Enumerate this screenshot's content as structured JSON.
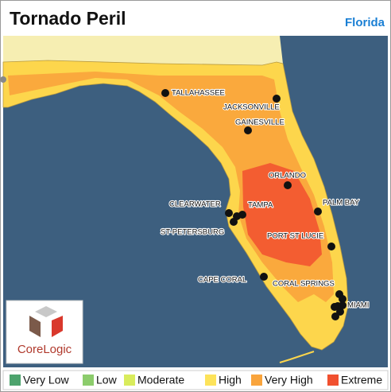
{
  "header": {
    "title": "Tornado Peril",
    "region": "Florida"
  },
  "cities": [
    {
      "label": "TALLAHASSEE"
    },
    {
      "label": "JACKSONVILLE"
    },
    {
      "label": "GAINESVILLE"
    },
    {
      "label": "ORLANDO"
    },
    {
      "label": "CLEARWATER"
    },
    {
      "label": "TAMPA"
    },
    {
      "label": "ST-PETERSBURG"
    },
    {
      "label": "PALM BAY"
    },
    {
      "label": "PORT ST LUCIE"
    },
    {
      "label": "CAPE CORAL"
    },
    {
      "label": "CORAL SPRINGS"
    },
    {
      "label": "MIAMI"
    }
  ],
  "legend": [
    {
      "label": "Very Low",
      "color": "#4da36d"
    },
    {
      "label": "Low",
      "color": "#8ccc6c"
    },
    {
      "label": "Moderate",
      "color": "#d9ec5c"
    },
    {
      "label": "High",
      "color": "#fde35a"
    },
    {
      "label": "Very High",
      "color": "#f9a43c"
    },
    {
      "label": "Extreme",
      "color": "#f1502f"
    }
  ],
  "logo": {
    "text": "CoreLogic"
  }
}
